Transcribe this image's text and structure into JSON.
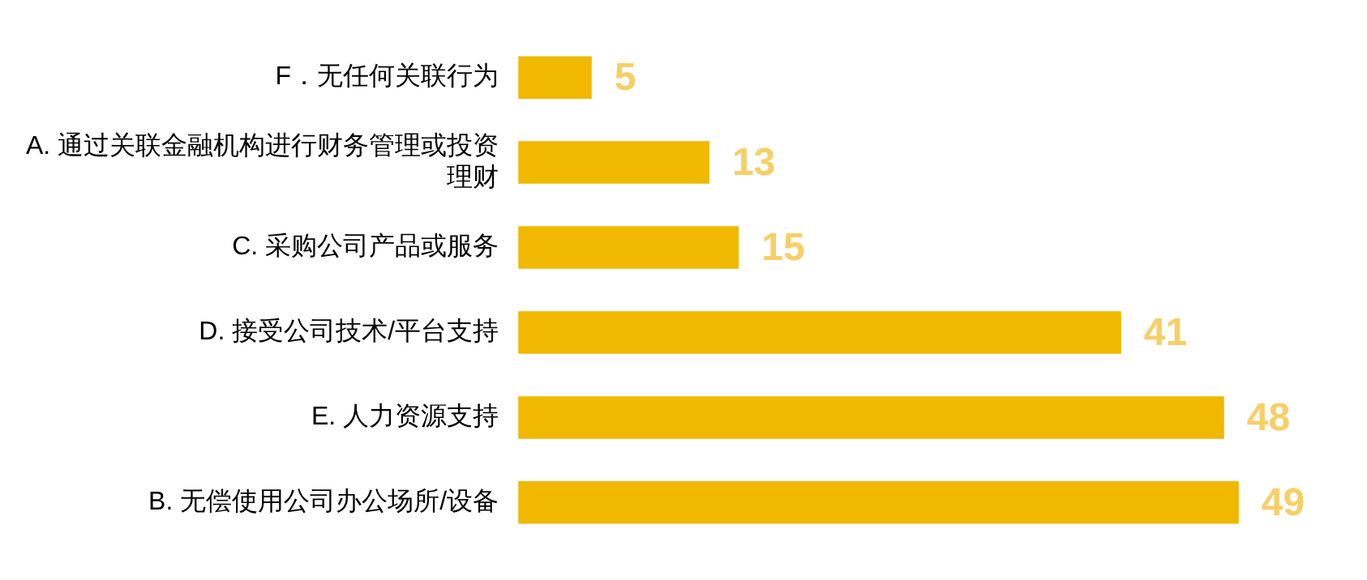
{
  "chart_data": {
    "type": "bar",
    "orientation": "horizontal",
    "categories": [
      "F．无任何关联行为",
      "A. 通过关联金融机构进行财务管理或投资理财",
      "C. 采购公司产品或服务",
      "D. 接受公司技术/平台支持",
      "E. 人力资源支持",
      "B. 无偿使用公司办公场所/设备"
    ],
    "values": [
      5,
      13,
      15,
      41,
      48,
      49
    ],
    "color": "#f0b800",
    "data_labels": true,
    "grid": false,
    "legend": false,
    "tick_labels": "y"
  }
}
